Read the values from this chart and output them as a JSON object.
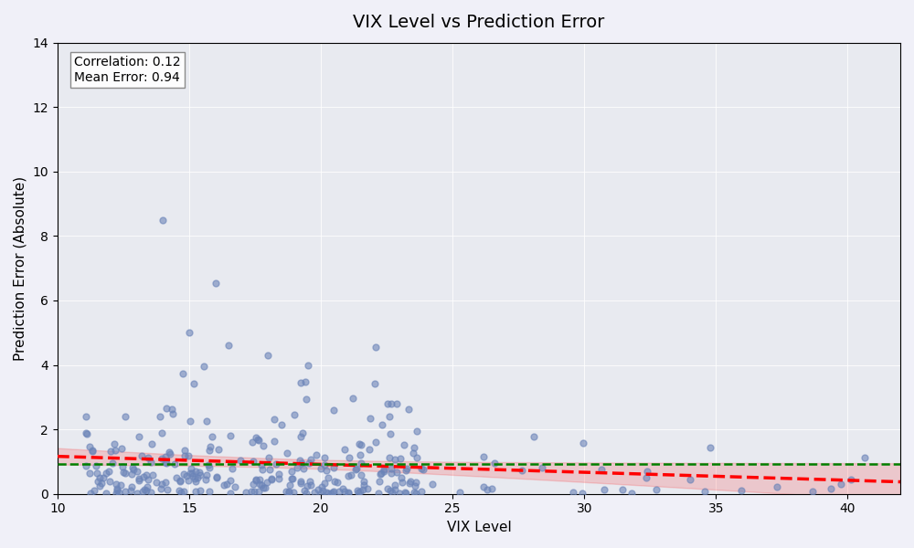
{
  "title": "VIX Level vs Prediction Error",
  "xlabel": "VIX Level",
  "ylabel": "Prediction Error (Absolute)",
  "correlation": 0.12,
  "mean_error": 0.94,
  "background_color": "#e8eaf0",
  "scatter_color": "#6b84b8",
  "scatter_alpha": 0.6,
  "scatter_size": 25,
  "trend_color": "red",
  "mean_color": "green",
  "xlim": [
    10,
    42
  ],
  "ylim": [
    0,
    14
  ],
  "seed": 42
}
